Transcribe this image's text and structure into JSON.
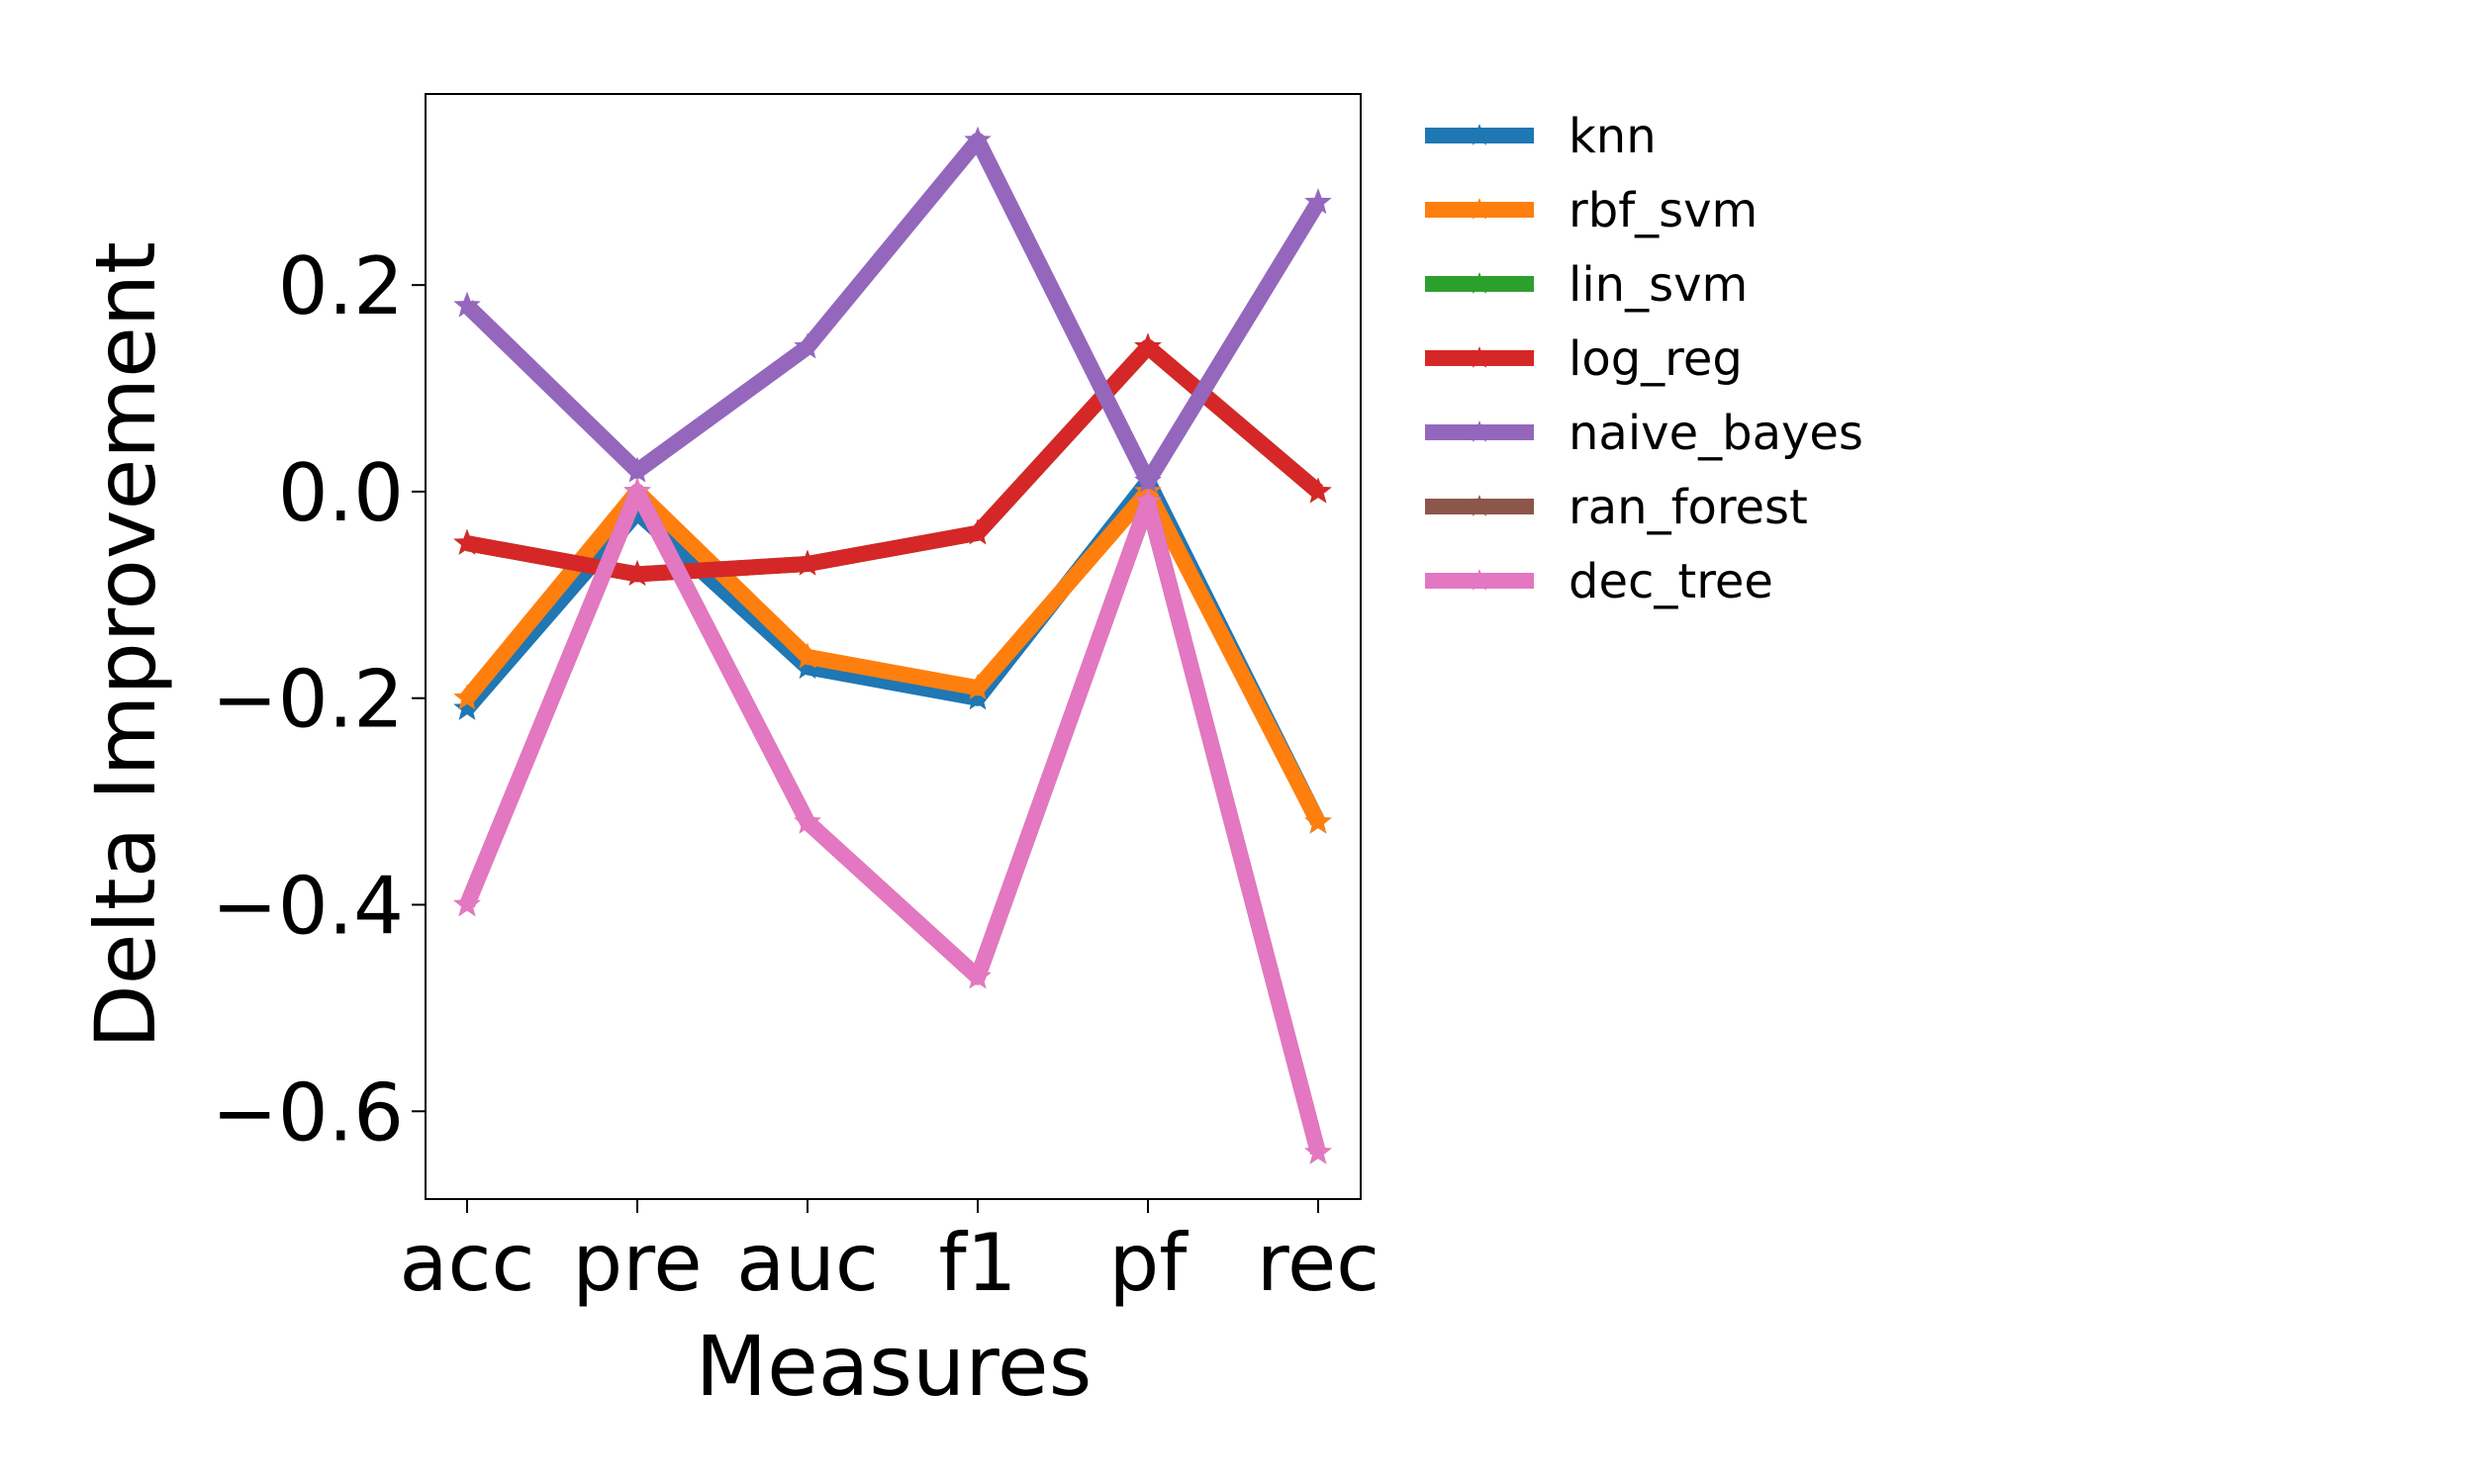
{
  "chart_data": {
    "type": "line",
    "title": "",
    "xlabel": "Measures",
    "ylabel": "Delta Improvement",
    "categories": [
      "acc",
      "pre",
      "auc",
      "f1",
      "pf",
      "rec"
    ],
    "ylim": [
      -0.685,
      0.385
    ],
    "yticks": [
      0.2,
      0.0,
      -0.2,
      -0.4,
      -0.6
    ],
    "ytick_labels": [
      "0.2",
      "0.0",
      "−0.2",
      "−0.4",
      "−0.6"
    ],
    "grid": false,
    "legend_position": "outside-right",
    "marker": "star",
    "series": [
      {
        "name": "knn",
        "color": "#1f77b4",
        "values": [
          -0.21,
          -0.02,
          -0.17,
          -0.2,
          0.01,
          -0.32
        ]
      },
      {
        "name": "rbf_svm",
        "color": "#ff7f0e",
        "values": [
          -0.2,
          0.0,
          -0.16,
          -0.19,
          0.0,
          -0.32
        ]
      },
      {
        "name": "lin_svm",
        "color": "#2ca02c",
        "values": [
          -0.05,
          -0.08,
          -0.07,
          -0.04,
          0.14,
          0.0
        ]
      },
      {
        "name": "log_reg",
        "color": "#d62728",
        "values": [
          -0.05,
          -0.08,
          -0.07,
          -0.04,
          0.14,
          0.0
        ]
      },
      {
        "name": "naive_bayes",
        "color": "#9467bd",
        "values": [
          0.18,
          0.02,
          0.14,
          0.34,
          0.01,
          0.28
        ]
      },
      {
        "name": "ran_forest",
        "color": "#8c564b",
        "values": [
          -0.4,
          0.0,
          -0.32,
          -0.47,
          -0.01,
          -0.64
        ]
      },
      {
        "name": "dec_tree",
        "color": "#e377c2",
        "values": [
          -0.4,
          0.0,
          -0.32,
          -0.47,
          -0.01,
          -0.64
        ]
      }
    ]
  }
}
